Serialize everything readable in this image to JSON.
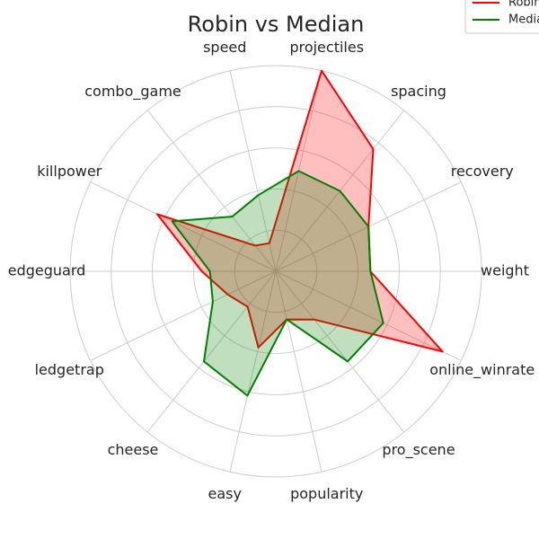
{
  "chart_data": {
    "type": "radar",
    "title": "Robin vs Median",
    "categories": [
      "weight",
      "recovery",
      "spacing",
      "projectiles",
      "speed",
      "combo_game",
      "killpower",
      "edgeguard",
      "ledgetrap",
      "cheese",
      "easy",
      "popularity",
      "pro_scene",
      "online_winrate"
    ],
    "series": [
      {
        "name": "Robin",
        "color": "#ff0000",
        "values": [
          2.3,
          2.5,
          3.8,
          5.0,
          0.7,
          0.8,
          3.2,
          1.8,
          1.3,
          1.1,
          1.9,
          1.2,
          1.5,
          4.5
        ]
      },
      {
        "name": "Median",
        "color": "#008000",
        "values": [
          2.3,
          2.5,
          2.5,
          2.5,
          1.9,
          1.7,
          2.8,
          1.6,
          1.7,
          2.8,
          3.1,
          1.2,
          2.8,
          2.9
        ]
      }
    ],
    "rlim": [
      0,
      5
    ],
    "rticks": [
      1,
      2,
      3,
      4,
      5
    ],
    "grid": true,
    "legend": "upper right"
  }
}
